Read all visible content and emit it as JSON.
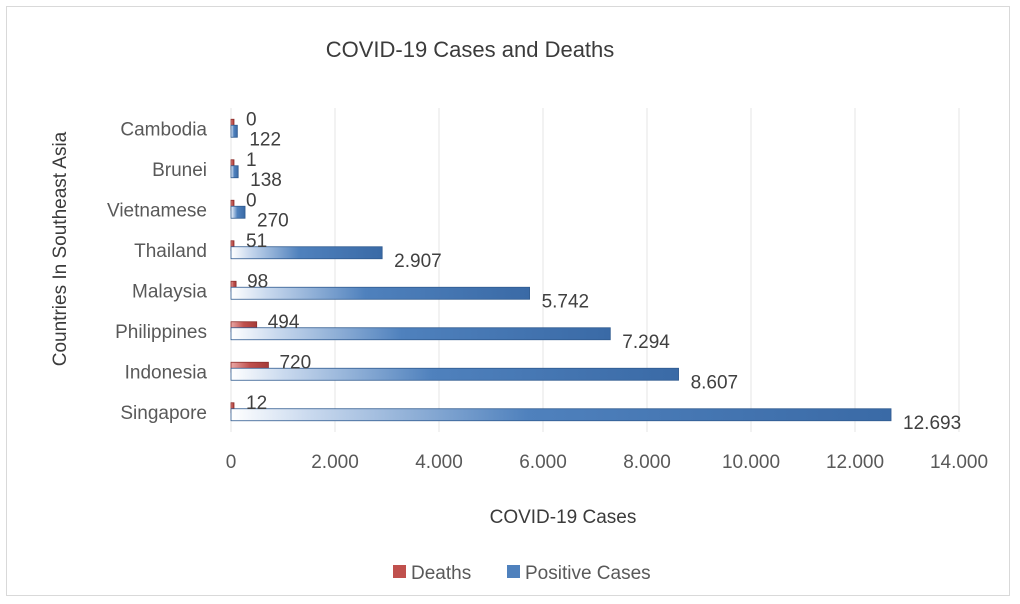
{
  "colors": {
    "deaths": "#c0504d",
    "positive": "#4f81bd"
  },
  "chart_data": {
    "type": "bar",
    "orientation": "horizontal",
    "title": "COVID-19 Cases and Deaths",
    "xlabel": "COVID-19 Cases",
    "ylabel": "Countries In Southeast Asia",
    "categories": [
      "Singapore",
      "Indonesia",
      "Philippines",
      "Malaysia",
      "Thailand",
      "Vietnamese",
      "Brunei",
      "Cambodia"
    ],
    "series": [
      {
        "name": "Deaths",
        "values": [
          12,
          720,
          494,
          98,
          51,
          0,
          1,
          0
        ],
        "labels": [
          "12",
          "720",
          "494",
          "98",
          "51",
          "0",
          "1",
          "0"
        ]
      },
      {
        "name": "Positive Cases",
        "values": [
          12693,
          8607,
          7294,
          5742,
          2907,
          270,
          138,
          122
        ],
        "labels": [
          "12.693",
          "8.607",
          "7.294",
          "5.742",
          "2.907",
          "270",
          "138",
          "122"
        ]
      }
    ],
    "xlim": [
      0,
      14000
    ],
    "xticks": [
      0,
      2000,
      4000,
      6000,
      8000,
      10000,
      12000,
      14000
    ],
    "xtick_labels": [
      "0",
      "2.000",
      "4.000",
      "6.000",
      "8.000",
      "10.000",
      "12.000",
      "14.000"
    ],
    "grid": true,
    "legend_position": "bottom"
  }
}
